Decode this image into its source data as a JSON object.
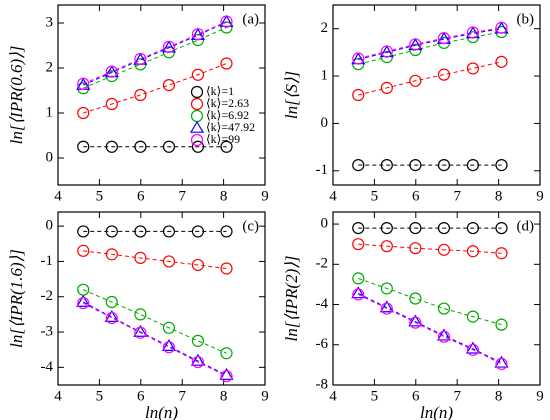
{
  "chart_data": [
    {
      "type": "line",
      "ylabel": "ln[⟨IPR(0.6)⟩]",
      "panel": "(a)",
      "legend": "right",
      "x": [
        4.61,
        5.3,
        5.99,
        6.68,
        7.38,
        8.07
      ],
      "xlim": [
        4,
        9
      ],
      "xticks": [
        4,
        5,
        6,
        7,
        8,
        9
      ],
      "ylim": [
        -0.6,
        3.4
      ],
      "yticks": [
        0,
        1,
        2,
        3
      ],
      "series": [
        {
          "name": "⟨k⟩=1",
          "color": "#000000",
          "marker": "circle",
          "values": [
            0.25,
            0.25,
            0.25,
            0.25,
            0.25,
            0.25
          ]
        },
        {
          "name": "⟨k⟩=2.63",
          "color": "#ff0000",
          "marker": "circle",
          "values": [
            1.0,
            1.2,
            1.4,
            1.62,
            1.85,
            2.1
          ]
        },
        {
          "name": "⟨k⟩=6.92",
          "color": "#00aa00",
          "marker": "circle",
          "values": [
            1.55,
            1.82,
            2.08,
            2.35,
            2.62,
            2.9
          ]
        },
        {
          "name": "⟨k⟩=47.92",
          "color": "#0000ff",
          "marker": "triangle",
          "values": [
            1.62,
            1.9,
            2.18,
            2.45,
            2.73,
            3.02
          ]
        },
        {
          "name": "⟨k⟩=99",
          "color": "#ff00ff",
          "marker": "circle",
          "values": [
            1.65,
            1.92,
            2.2,
            2.47,
            2.75,
            3.03
          ]
        }
      ]
    },
    {
      "type": "line",
      "ylabel": "ln[⟨S⟩]",
      "panel": "(b)",
      "x": [
        4.61,
        5.3,
        5.99,
        6.68,
        7.38,
        8.07
      ],
      "xlim": [
        4,
        9
      ],
      "xticks": [
        4,
        5,
        6,
        7,
        8,
        9
      ],
      "ylim": [
        -1.3,
        2.5
      ],
      "yticks": [
        -1,
        0,
        1,
        2
      ],
      "series": [
        {
          "color": "#000000",
          "marker": "circle",
          "values": [
            -0.88,
            -0.88,
            -0.88,
            -0.88,
            -0.88,
            -0.88
          ]
        },
        {
          "color": "#ff0000",
          "marker": "circle",
          "values": [
            0.6,
            0.75,
            0.9,
            1.03,
            1.16,
            1.3
          ]
        },
        {
          "color": "#00aa00",
          "marker": "circle",
          "values": [
            1.25,
            1.4,
            1.55,
            1.7,
            1.82,
            1.93
          ]
        },
        {
          "color": "#0000ff",
          "marker": "triangle",
          "values": [
            1.35,
            1.5,
            1.65,
            1.78,
            1.9,
            2.0
          ]
        },
        {
          "color": "#ff00ff",
          "marker": "circle",
          "values": [
            1.37,
            1.52,
            1.67,
            1.8,
            1.92,
            2.02
          ]
        }
      ]
    },
    {
      "type": "line",
      "ylabel": "ln[⟨IPR(1.6)⟩]",
      "xlabel": "ln(n)",
      "panel": "(c)",
      "x": [
        4.61,
        5.3,
        5.99,
        6.68,
        7.38,
        8.07
      ],
      "xlim": [
        4,
        9
      ],
      "xticks": [
        4,
        5,
        6,
        7,
        8,
        9
      ],
      "ylim": [
        -4.5,
        0.4
      ],
      "yticks": [
        -4,
        -3,
        -2,
        -1,
        0
      ],
      "series": [
        {
          "color": "#000000",
          "marker": "circle",
          "values": [
            -0.15,
            -0.15,
            -0.15,
            -0.15,
            -0.15,
            -0.15
          ]
        },
        {
          "color": "#ff0000",
          "marker": "circle",
          "values": [
            -0.7,
            -0.8,
            -0.9,
            -1.0,
            -1.1,
            -1.2
          ]
        },
        {
          "color": "#00aa00",
          "marker": "circle",
          "values": [
            -1.8,
            -2.15,
            -2.5,
            -2.88,
            -3.25,
            -3.6
          ]
        },
        {
          "color": "#0000ff",
          "marker": "triangle",
          "values": [
            -2.15,
            -2.58,
            -3.0,
            -3.4,
            -3.82,
            -4.22
          ]
        },
        {
          "color": "#ff00ff",
          "marker": "circle",
          "values": [
            -2.18,
            -2.6,
            -3.02,
            -3.43,
            -3.85,
            -4.25
          ]
        }
      ]
    },
    {
      "type": "line",
      "ylabel": "ln[⟨IPR(2)⟩]",
      "xlabel": "ln(n)",
      "panel": "(d)",
      "x": [
        4.61,
        5.3,
        5.99,
        6.68,
        7.38,
        8.07
      ],
      "xlim": [
        4,
        9
      ],
      "xticks": [
        4,
        5,
        6,
        7,
        8,
        9
      ],
      "ylim": [
        -8,
        0.6
      ],
      "yticks": [
        -8,
        -6,
        -4,
        -2,
        0
      ],
      "series": [
        {
          "color": "#000000",
          "marker": "circle",
          "values": [
            -0.2,
            -0.2,
            -0.2,
            -0.2,
            -0.2,
            -0.2
          ]
        },
        {
          "color": "#ff0000",
          "marker": "circle",
          "values": [
            -1.0,
            -1.1,
            -1.2,
            -1.28,
            -1.35,
            -1.45
          ]
        },
        {
          "color": "#00aa00",
          "marker": "circle",
          "values": [
            -2.7,
            -3.2,
            -3.7,
            -4.2,
            -4.6,
            -5.0
          ]
        },
        {
          "color": "#0000ff",
          "marker": "triangle",
          "values": [
            -3.45,
            -4.15,
            -4.85,
            -5.55,
            -6.2,
            -6.9
          ]
        },
        {
          "color": "#ff00ff",
          "marker": "circle",
          "values": [
            -3.5,
            -4.2,
            -4.9,
            -5.6,
            -6.25,
            -6.95
          ]
        }
      ]
    }
  ]
}
